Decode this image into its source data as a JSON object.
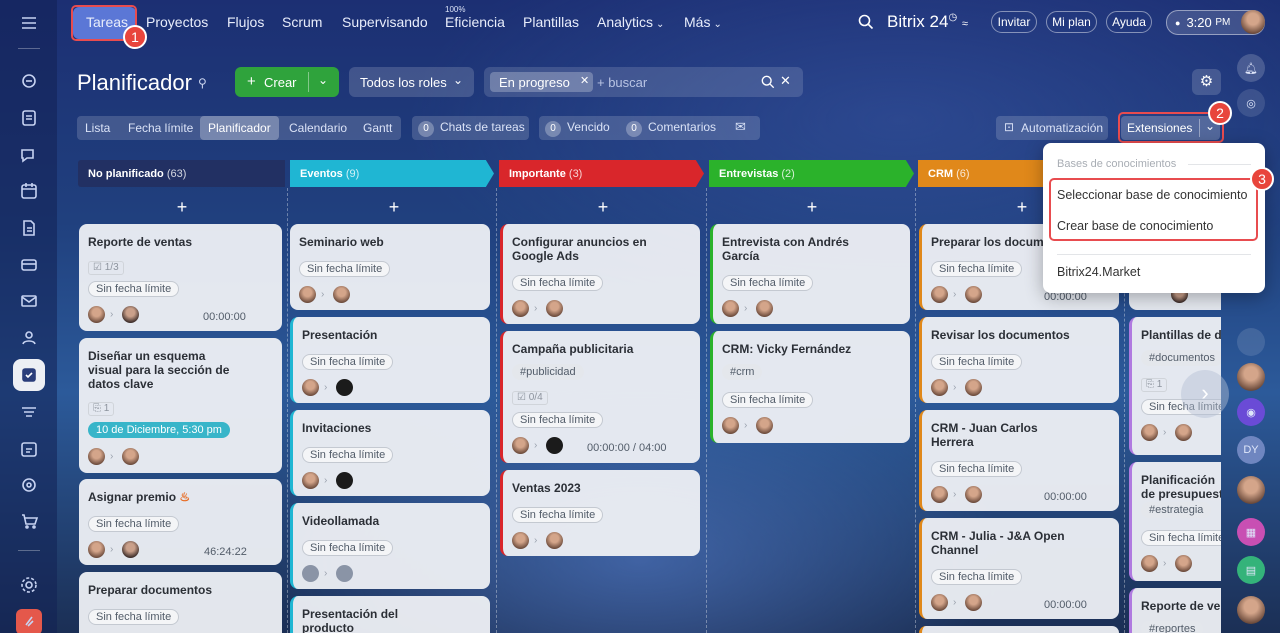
{
  "topnav": {
    "items": [
      "Tareas",
      "Proyectos",
      "Flujos",
      "Scrum",
      "Supervisando",
      "Eficiencia",
      "Plantillas",
      "Analytics",
      "Más"
    ],
    "eficiencia_pct": "100%",
    "brand": "Bitrix",
    "brand_num": "24",
    "invitar": "Invitar",
    "miplan": "Mi plan",
    "ayuda": "Ayuda",
    "clock": "3:20",
    "ampm": "PM"
  },
  "page": {
    "title": "Planificador"
  },
  "toolbar": {
    "crear": "Crear",
    "roles": "Todos los roles",
    "filter_tag": "En progreso",
    "search_placeholder": "+ buscar",
    "views": [
      "Lista",
      "Fecha límite",
      "Planificador",
      "Calendario",
      "Gantt"
    ],
    "chats_count": "0",
    "chats": "Chats de tareas",
    "vencido_count": "0",
    "vencido": "Vencido",
    "coment_count": "0",
    "comentarios": "Comentarios",
    "automatizacion": "Automatización",
    "extensiones": "Extensiones"
  },
  "callouts": [
    "1",
    "2",
    "3"
  ],
  "dropdown": {
    "section": "Bases de conocimientos",
    "select": "Seleccionar base de conocimiento",
    "create": "Crear base de conocimiento",
    "market": "Bitrix24.Market"
  },
  "columns": [
    {
      "name": "No planificado",
      "count": "(63)"
    },
    {
      "name": "Eventos",
      "count": "(9)"
    },
    {
      "name": "Importante",
      "count": "(3)"
    },
    {
      "name": "Entrevistas",
      "count": "(2)"
    },
    {
      "name": "CRM",
      "count": "(6)"
    }
  ],
  "cards": {
    "c1": {
      "title": "Reporte de ventas",
      "check": "1/3",
      "tag": "Sin fecha límite",
      "time": "00:00:00"
    },
    "c2": {
      "title": "Diseñar un esquema visual para la sección de datos clave",
      "check": "1",
      "date": "10 de Diciembre, 5:30 pm"
    },
    "c3": {
      "title": "Asignar premio",
      "tag": "Sin fecha límite",
      "time": "46:24:22"
    },
    "c4": {
      "title": "Preparar documentos",
      "tag": "Sin fecha límite"
    },
    "e1": {
      "title": "Seminario web",
      "tag": "Sin fecha límite"
    },
    "e2": {
      "title": "Presentación",
      "tag": "Sin fecha límite"
    },
    "e3": {
      "title": "Invitaciones",
      "tag": "Sin fecha límite"
    },
    "e4": {
      "title": "Videollamada",
      "tag": "Sin fecha límite"
    },
    "e5": {
      "title": "Presentación del producto"
    },
    "i1": {
      "title": "Configurar anuncios en Google Ads",
      "tag": "Sin fecha límite"
    },
    "i2": {
      "title": "Campaña publicitaria",
      "hashtag": "#publicidad",
      "check": "0/4",
      "tag": "Sin fecha límite",
      "time": "00:00:00 / 04:00"
    },
    "i3": {
      "title": "Ventas 2023",
      "tag": "Sin fecha límite"
    },
    "n1": {
      "title": "Entrevista con Andrés García",
      "tag": "Sin fecha límite"
    },
    "n2": {
      "title": "CRM: Vicky Fernández",
      "hashtag": "#crm",
      "tag": "Sin fecha límite"
    },
    "r1": {
      "title": "Preparar los docume",
      "tag": "Sin fecha límite",
      "time": "00:00:00"
    },
    "r2": {
      "title": "Revisar los documentos",
      "tag": "Sin fecha límite"
    },
    "r3": {
      "title": "CRM - Juan Carlos Herrera",
      "tag": "Sin fecha límite",
      "time": "00:00:00"
    },
    "r4": {
      "title": "CRM - Julia - J&A Open Channel",
      "tag": "Sin fecha límite",
      "time": "00:00:00"
    },
    "p1": {
      "title": "Plantillas de do",
      "hashtag": "#documentos",
      "check": "1",
      "tag": "Sin fecha límite"
    },
    "p2": {
      "title": "Planificación de presupuesto",
      "hashtag": "#estrategia",
      "tag": "Sin fecha límite"
    },
    "p3": {
      "title": "Reporte de ven",
      "hashtag": "#reportes"
    }
  },
  "rightnav": {
    "dy": "DY"
  },
  "colors": {
    "eventos": "#1fb6d3",
    "importante": "#d9262b",
    "entrevistas": "#2bb22b",
    "crm": "#e0881a",
    "crear": "#2fa33c"
  }
}
